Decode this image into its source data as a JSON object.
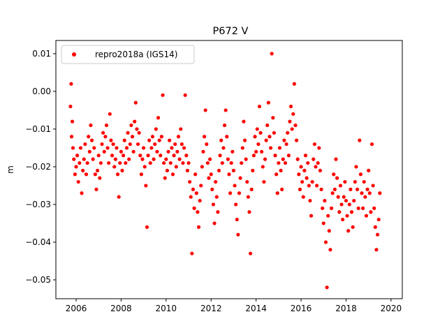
{
  "chart_data": {
    "type": "scatter",
    "title": "P672 V",
    "xlabel": "",
    "ylabel": "m",
    "xlim": [
      2005.1,
      2020.5
    ],
    "ylim": [
      -0.055,
      0.0135
    ],
    "xticks": [
      2006,
      2008,
      2010,
      2012,
      2014,
      2016,
      2018,
      2020
    ],
    "xtick_labels": [
      "2006",
      "2008",
      "2010",
      "2012",
      "2014",
      "2016",
      "2018",
      "2020"
    ],
    "yticks": [
      0.01,
      0.0,
      -0.01,
      -0.02,
      -0.03,
      -0.04,
      -0.05
    ],
    "ytick_labels": [
      "0.01",
      "0.00",
      "−0.01",
      "−0.02",
      "−0.03",
      "−0.04",
      "−0.05"
    ],
    "grid": false,
    "legend": {
      "position": "top-left",
      "entries": [
        "repro2018a (IGS14)"
      ]
    },
    "series": [
      {
        "name": "repro2018a (IGS14)",
        "color": "#ff0000",
        "marker": "circle",
        "points": [
          [
            2005.75,
            -0.004
          ],
          [
            2005.78,
            0.002
          ],
          [
            2005.8,
            -0.012
          ],
          [
            2005.83,
            -0.008
          ],
          [
            2005.86,
            -0.015
          ],
          [
            2005.9,
            -0.018
          ],
          [
            2005.95,
            -0.022
          ],
          [
            2006.0,
            -0.02
          ],
          [
            2006.05,
            -0.017
          ],
          [
            2006.1,
            -0.024
          ],
          [
            2006.15,
            -0.019
          ],
          [
            2006.2,
            -0.015
          ],
          [
            2006.25,
            -0.027
          ],
          [
            2006.3,
            -0.021
          ],
          [
            2006.35,
            -0.018
          ],
          [
            2006.4,
            -0.014
          ],
          [
            2006.45,
            -0.022
          ],
          [
            2006.5,
            -0.019
          ],
          [
            2006.55,
            -0.012
          ],
          [
            2006.6,
            -0.016
          ],
          [
            2006.65,
            -0.009
          ],
          [
            2006.7,
            -0.013
          ],
          [
            2006.75,
            -0.018
          ],
          [
            2006.8,
            -0.015
          ],
          [
            2006.85,
            -0.022
          ],
          [
            2006.9,
            -0.026
          ],
          [
            2006.95,
            -0.021
          ],
          [
            2007.0,
            -0.017
          ],
          [
            2007.05,
            -0.023
          ],
          [
            2007.1,
            -0.019
          ],
          [
            2007.15,
            -0.014
          ],
          [
            2007.2,
            -0.011
          ],
          [
            2007.25,
            -0.016
          ],
          [
            2007.3,
            -0.012
          ],
          [
            2007.35,
            -0.009
          ],
          [
            2007.4,
            -0.015
          ],
          [
            2007.45,
            -0.019
          ],
          [
            2007.5,
            -0.006
          ],
          [
            2007.55,
            -0.013
          ],
          [
            2007.6,
            -0.017
          ],
          [
            2007.65,
            -0.014
          ],
          [
            2007.7,
            -0.02
          ],
          [
            2007.75,
            -0.018
          ],
          [
            2007.8,
            -0.015
          ],
          [
            2007.85,
            -0.022
          ],
          [
            2007.9,
            -0.028
          ],
          [
            2007.95,
            -0.019
          ],
          [
            2008.0,
            -0.016
          ],
          [
            2008.05,
            -0.021
          ],
          [
            2008.1,
            -0.017
          ],
          [
            2008.15,
            -0.013
          ],
          [
            2008.2,
            -0.019
          ],
          [
            2008.25,
            -0.015
          ],
          [
            2008.3,
            -0.011
          ],
          [
            2008.35,
            -0.018
          ],
          [
            2008.4,
            -0.014
          ],
          [
            2008.45,
            -0.009
          ],
          [
            2008.5,
            -0.012
          ],
          [
            2008.55,
            -0.016
          ],
          [
            2008.6,
            -0.008
          ],
          [
            2008.65,
            -0.003
          ],
          [
            2008.7,
            -0.01
          ],
          [
            2008.75,
            -0.014
          ],
          [
            2008.8,
            -0.011
          ],
          [
            2008.85,
            -0.017
          ],
          [
            2008.9,
            -0.022
          ],
          [
            2008.95,
            -0.018
          ],
          [
            2009.0,
            -0.015
          ],
          [
            2009.05,
            -0.02
          ],
          [
            2009.1,
            -0.025
          ],
          [
            2009.15,
            -0.036
          ],
          [
            2009.2,
            -0.017
          ],
          [
            2009.25,
            -0.013
          ],
          [
            2009.3,
            -0.019
          ],
          [
            2009.35,
            -0.015
          ],
          [
            2009.4,
            -0.012
          ],
          [
            2009.45,
            -0.018
          ],
          [
            2009.5,
            -0.014
          ],
          [
            2009.55,
            -0.01
          ],
          [
            2009.6,
            -0.016
          ],
          [
            2009.65,
            -0.007
          ],
          [
            2009.7,
            -0.013
          ],
          [
            2009.75,
            -0.017
          ],
          [
            2009.8,
            -0.012
          ],
          [
            2009.85,
            -0.001
          ],
          [
            2009.9,
            -0.019
          ],
          [
            2009.95,
            -0.023
          ],
          [
            2010.0,
            -0.018
          ],
          [
            2010.05,
            -0.021
          ],
          [
            2010.1,
            -0.016
          ],
          [
            2010.15,
            -0.013
          ],
          [
            2010.2,
            -0.019
          ],
          [
            2010.25,
            -0.015
          ],
          [
            2010.3,
            -0.022
          ],
          [
            2010.35,
            -0.017
          ],
          [
            2010.4,
            -0.014
          ],
          [
            2010.45,
            -0.02
          ],
          [
            2010.5,
            -0.016
          ],
          [
            2010.55,
            -0.012
          ],
          [
            2010.6,
            -0.018
          ],
          [
            2010.65,
            -0.01
          ],
          [
            2010.7,
            -0.014
          ],
          [
            2010.75,
            -0.019
          ],
          [
            2010.8,
            -0.015
          ],
          [
            2010.85,
            -0.001
          ],
          [
            2010.9,
            -0.017
          ],
          [
            2010.95,
            -0.021
          ],
          [
            2011.0,
            -0.019
          ],
          [
            2011.05,
            -0.024
          ],
          [
            2011.1,
            -0.028
          ],
          [
            2011.15,
            -0.043
          ],
          [
            2011.2,
            -0.026
          ],
          [
            2011.25,
            -0.031
          ],
          [
            2011.3,
            -0.022
          ],
          [
            2011.35,
            -0.027
          ],
          [
            2011.4,
            -0.032
          ],
          [
            2011.45,
            -0.036
          ],
          [
            2011.5,
            -0.029
          ],
          [
            2011.55,
            -0.025
          ],
          [
            2011.6,
            -0.02
          ],
          [
            2011.65,
            -0.016
          ],
          [
            2011.7,
            -0.012
          ],
          [
            2011.75,
            -0.005
          ],
          [
            2011.8,
            -0.014
          ],
          [
            2011.85,
            -0.019
          ],
          [
            2011.9,
            -0.023
          ],
          [
            2011.95,
            -0.018
          ],
          [
            2012.0,
            -0.022
          ],
          [
            2012.05,
            -0.026
          ],
          [
            2012.1,
            -0.03
          ],
          [
            2012.15,
            -0.035
          ],
          [
            2012.2,
            -0.024
          ],
          [
            2012.25,
            -0.028
          ],
          [
            2012.3,
            -0.032
          ],
          [
            2012.35,
            -0.021
          ],
          [
            2012.4,
            -0.017
          ],
          [
            2012.45,
            -0.013
          ],
          [
            2012.5,
            -0.019
          ],
          [
            2012.55,
            -0.015
          ],
          [
            2012.6,
            -0.009
          ],
          [
            2012.65,
            -0.005
          ],
          [
            2012.7,
            -0.012
          ],
          [
            2012.75,
            -0.018
          ],
          [
            2012.8,
            -0.022
          ],
          [
            2012.85,
            -0.027
          ],
          [
            2012.9,
            -0.019
          ],
          [
            2012.95,
            -0.016
          ],
          [
            2013.0,
            -0.021
          ],
          [
            2013.05,
            -0.025
          ],
          [
            2013.1,
            -0.03
          ],
          [
            2013.15,
            -0.034
          ],
          [
            2013.2,
            -0.038
          ],
          [
            2013.25,
            -0.027
          ],
          [
            2013.3,
            -0.023
          ],
          [
            2013.35,
            -0.019
          ],
          [
            2013.4,
            -0.015
          ],
          [
            2013.45,
            -0.008
          ],
          [
            2013.5,
            -0.013
          ],
          [
            2013.55,
            -0.018
          ],
          [
            2013.6,
            -0.024
          ],
          [
            2013.65,
            -0.028
          ],
          [
            2013.7,
            -0.032
          ],
          [
            2013.75,
            -0.043
          ],
          [
            2013.8,
            -0.026
          ],
          [
            2013.85,
            -0.021
          ],
          [
            2013.9,
            -0.017
          ],
          [
            2013.95,
            -0.012
          ],
          [
            2014.0,
            -0.016
          ],
          [
            2014.05,
            -0.01
          ],
          [
            2014.1,
            -0.014
          ],
          [
            2014.15,
            -0.004
          ],
          [
            2014.2,
            -0.011
          ],
          [
            2014.25,
            -0.016
          ],
          [
            2014.3,
            -0.02
          ],
          [
            2014.35,
            -0.024
          ],
          [
            2014.4,
            -0.018
          ],
          [
            2014.45,
            -0.013
          ],
          [
            2014.5,
            -0.009
          ],
          [
            2014.55,
            -0.003
          ],
          [
            2014.6,
            -0.012
          ],
          [
            2014.65,
            -0.015
          ],
          [
            2014.7,
            0.01
          ],
          [
            2014.75,
            -0.007
          ],
          [
            2014.8,
            -0.011
          ],
          [
            2014.85,
            -0.017
          ],
          [
            2014.9,
            -0.022
          ],
          [
            2014.95,
            -0.027
          ],
          [
            2015.0,
            -0.019
          ],
          [
            2015.05,
            -0.015
          ],
          [
            2015.1,
            -0.021
          ],
          [
            2015.15,
            -0.026
          ],
          [
            2015.2,
            -0.018
          ],
          [
            2015.25,
            -0.013
          ],
          [
            2015.3,
            -0.019
          ],
          [
            2015.35,
            -0.014
          ],
          [
            2015.4,
            -0.011
          ],
          [
            2015.45,
            -0.017
          ],
          [
            2015.5,
            -0.008
          ],
          [
            2015.55,
            -0.004
          ],
          [
            2015.6,
            -0.01
          ],
          [
            2015.65,
            -0.006
          ],
          [
            2015.7,
            0.002
          ],
          [
            2015.75,
            -0.009
          ],
          [
            2015.8,
            -0.013
          ],
          [
            2015.85,
            -0.018
          ],
          [
            2015.9,
            -0.022
          ],
          [
            2015.95,
            -0.026
          ],
          [
            2016.0,
            -0.02
          ],
          [
            2016.05,
            -0.024
          ],
          [
            2016.1,
            -0.028
          ],
          [
            2016.15,
            -0.021
          ],
          [
            2016.2,
            -0.017
          ],
          [
            2016.25,
            -0.023
          ],
          [
            2016.3,
            -0.019
          ],
          [
            2016.35,
            -0.025
          ],
          [
            2016.4,
            -0.029
          ],
          [
            2016.45,
            -0.033
          ],
          [
            2016.5,
            -0.024
          ],
          [
            2016.55,
            -0.018
          ],
          [
            2016.6,
            -0.014
          ],
          [
            2016.65,
            -0.02
          ],
          [
            2016.7,
            -0.025
          ],
          [
            2016.75,
            -0.019
          ],
          [
            2016.8,
            -0.015
          ],
          [
            2016.85,
            -0.021
          ],
          [
            2016.9,
            -0.026
          ],
          [
            2016.95,
            -0.031
          ],
          [
            2017.0,
            -0.035
          ],
          [
            2017.05,
            -0.029
          ],
          [
            2017.1,
            -0.04
          ],
          [
            2017.15,
            -0.052
          ],
          [
            2017.2,
            -0.033
          ],
          [
            2017.25,
            -0.037
          ],
          [
            2017.3,
            -0.042
          ],
          [
            2017.35,
            -0.031
          ],
          [
            2017.4,
            -0.027
          ],
          [
            2017.45,
            -0.022
          ],
          [
            2017.5,
            -0.026
          ],
          [
            2017.55,
            -0.018
          ],
          [
            2017.6,
            -0.023
          ],
          [
            2017.65,
            -0.028
          ],
          [
            2017.7,
            -0.032
          ],
          [
            2017.75,
            -0.025
          ],
          [
            2017.8,
            -0.03
          ],
          [
            2017.85,
            -0.034
          ],
          [
            2017.9,
            -0.028
          ],
          [
            2017.95,
            -0.024
          ],
          [
            2018.0,
            -0.029
          ],
          [
            2018.05,
            -0.033
          ],
          [
            2018.1,
            -0.037
          ],
          [
            2018.15,
            -0.03
          ],
          [
            2018.2,
            -0.026
          ],
          [
            2018.25,
            -0.032
          ],
          [
            2018.3,
            -0.036
          ],
          [
            2018.35,
            -0.029
          ],
          [
            2018.4,
            -0.024
          ],
          [
            2018.45,
            -0.02
          ],
          [
            2018.5,
            -0.026
          ],
          [
            2018.55,
            -0.031
          ],
          [
            2018.6,
            -0.013
          ],
          [
            2018.65,
            -0.022
          ],
          [
            2018.7,
            -0.027
          ],
          [
            2018.75,
            -0.031
          ],
          [
            2018.8,
            -0.024
          ],
          [
            2018.85,
            -0.028
          ],
          [
            2018.9,
            -0.033
          ],
          [
            2018.95,
            -0.026
          ],
          [
            2019.0,
            -0.021
          ],
          [
            2019.05,
            -0.027
          ],
          [
            2019.1,
            -0.032
          ],
          [
            2019.15,
            -0.014
          ],
          [
            2019.2,
            -0.025
          ],
          [
            2019.25,
            -0.031
          ],
          [
            2019.3,
            -0.036
          ],
          [
            2019.35,
            -0.042
          ],
          [
            2019.4,
            -0.038
          ],
          [
            2019.45,
            -0.034
          ],
          [
            2019.5,
            -0.027
          ]
        ]
      }
    ]
  }
}
